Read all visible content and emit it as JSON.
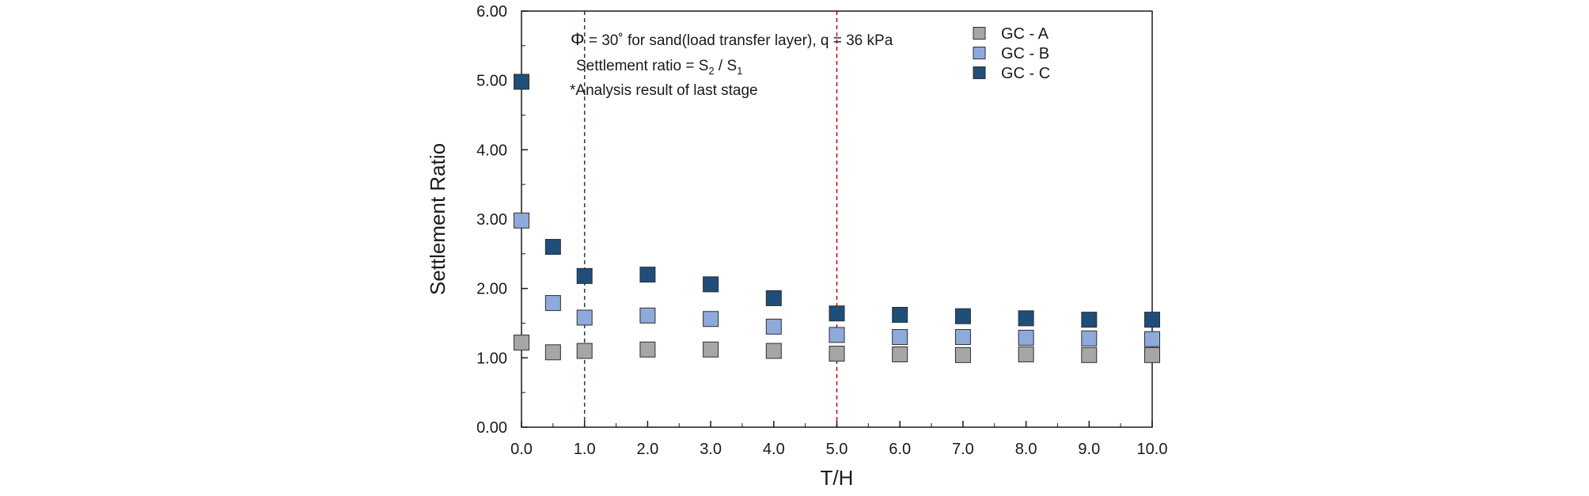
{
  "chart_data": {
    "type": "scatter",
    "title": "",
    "xlabel": "T/H",
    "ylabel": "Settlement  Ratio",
    "xlim": [
      0,
      10
    ],
    "ylim": [
      0,
      6
    ],
    "x_tick_labels": [
      "0.0",
      "1.0",
      "2.0",
      "3.0",
      "4.0",
      "5.0",
      "6.0",
      "7.0",
      "8.0",
      "9.0",
      "10.0"
    ],
    "y_tick_labels": [
      "0.00",
      "1.00",
      "2.00",
      "3.00",
      "4.00",
      "5.00",
      "6.00"
    ],
    "grid": false,
    "legend_position": "top-right",
    "x": [
      0,
      0.5,
      1,
      2,
      3,
      4,
      5,
      6,
      7,
      8,
      9,
      10
    ],
    "series": [
      {
        "name": "GC - A",
        "color": "#a6a6a6",
        "values": [
          1.22,
          1.08,
          1.1,
          1.12,
          1.12,
          1.1,
          1.06,
          1.05,
          1.04,
          1.05,
          1.04,
          1.04
        ]
      },
      {
        "name": "GC - B",
        "color": "#8eaadb",
        "values": [
          2.98,
          1.79,
          1.58,
          1.61,
          1.56,
          1.45,
          1.33,
          1.3,
          1.3,
          1.29,
          1.28,
          1.27
        ]
      },
      {
        "name": "GC - C",
        "color": "#1f4e79",
        "values": [
          4.98,
          2.6,
          2.18,
          2.2,
          2.06,
          1.86,
          1.64,
          1.62,
          1.6,
          1.57,
          1.55,
          1.55
        ]
      }
    ],
    "reference_lines": [
      {
        "x": 1,
        "color": "#1f3864",
        "style": "dashed"
      },
      {
        "x": 5,
        "color": "#c00000",
        "style": "dashed"
      }
    ],
    "annotations": {
      "line1_symbol": "Φ",
      "line1_rest": " = 30˚ for sand(load transfer layer),  q = 36 kPa",
      "line2_prefix": "Settlement ratio = ",
      "line2_s": "S",
      "line2_sub_num": "2",
      "line2_slash": " / ",
      "line2_sub_den": "1",
      "line3": "*Analysis result of  last stage"
    }
  }
}
